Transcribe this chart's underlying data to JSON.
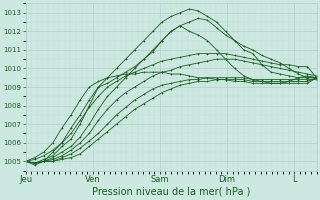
{
  "xlabel": "Pression niveau de la mer( hPa )",
  "ylim": [
    1004.5,
    1013.5
  ],
  "yticks": [
    1005,
    1006,
    1007,
    1008,
    1009,
    1010,
    1011,
    1012,
    1013
  ],
  "bg_color": "#cce8e0",
  "grid_major_color": "#b0d0c8",
  "grid_minor_color": "#c0dcd4",
  "line_color": "#1a5e20",
  "marker": "+",
  "days": [
    "Jeu",
    "Ven",
    "Sam",
    "Dim",
    "L"
  ],
  "day_positions": [
    0,
    1.5,
    3.0,
    4.5,
    6.0
  ],
  "xlim": [
    0,
    6.5
  ],
  "xlabel_fontsize": 7,
  "ytick_fontsize": 5,
  "xtick_fontsize": 6,
  "series": [
    [
      1005.0,
      1004.8,
      1005.0,
      1005.5,
      1006.0,
      1006.8,
      1007.5,
      1008.3,
      1009.0,
      1009.2,
      1009.5,
      1009.8,
      1010.1,
      1010.5,
      1010.9,
      1011.5,
      1012.0,
      1012.3,
      1012.0,
      1011.8,
      1011.5,
      1011.0,
      1010.5,
      1010.0,
      1009.6,
      1009.4,
      1009.3,
      1009.2,
      1009.2,
      1009.3,
      1009.5,
      1009.6,
      1009.5
    ],
    [
      1005.0,
      1004.9,
      1005.1,
      1005.3,
      1005.8,
      1006.2,
      1007.0,
      1008.0,
      1009.0,
      1009.5,
      1010.0,
      1010.5,
      1011.0,
      1011.5,
      1012.0,
      1012.5,
      1012.8,
      1013.0,
      1013.2,
      1013.1,
      1012.8,
      1012.5,
      1012.0,
      1011.5,
      1011.0,
      1010.8,
      1010.2,
      1009.8,
      1009.7,
      1009.6,
      1009.5,
      1009.5,
      1009.5
    ],
    [
      1005.0,
      1004.9,
      1005.0,
      1005.2,
      1005.5,
      1005.8,
      1006.3,
      1007.0,
      1007.8,
      1008.5,
      1009.0,
      1009.5,
      1010.0,
      1010.5,
      1011.0,
      1011.5,
      1012.0,
      1012.3,
      1012.5,
      1012.7,
      1012.6,
      1012.2,
      1011.8,
      1011.5,
      1011.2,
      1011.0,
      1010.7,
      1010.5,
      1010.3,
      1010.0,
      1009.7,
      1009.5,
      1009.5
    ],
    [
      1005.0,
      1004.9,
      1005.0,
      1005.1,
      1005.3,
      1005.6,
      1006.0,
      1006.5,
      1007.2,
      1007.8,
      1008.3,
      1008.7,
      1009.0,
      1009.3,
      1009.6,
      1009.8,
      1009.9,
      1010.1,
      1010.2,
      1010.3,
      1010.4,
      1010.5,
      1010.5,
      1010.5,
      1010.4,
      1010.3,
      1010.2,
      1010.1,
      1010.0,
      1009.9,
      1009.8,
      1009.7,
      1009.6
    ],
    [
      1005.0,
      1004.9,
      1005.0,
      1005.0,
      1005.2,
      1005.4,
      1005.7,
      1006.1,
      1006.5,
      1007.0,
      1007.5,
      1007.9,
      1008.3,
      1008.6,
      1008.9,
      1009.1,
      1009.2,
      1009.3,
      1009.4,
      1009.4,
      1009.5,
      1009.5,
      1009.5,
      1009.5,
      1009.5,
      1009.4,
      1009.4,
      1009.4,
      1009.4,
      1009.4,
      1009.4,
      1009.4,
      1009.4
    ],
    [
      1005.0,
      1004.9,
      1005.0,
      1005.0,
      1005.1,
      1005.2,
      1005.4,
      1005.8,
      1006.2,
      1006.6,
      1007.0,
      1007.4,
      1007.8,
      1008.1,
      1008.4,
      1008.7,
      1008.9,
      1009.1,
      1009.2,
      1009.3,
      1009.3,
      1009.4,
      1009.4,
      1009.4,
      1009.4,
      1009.3,
      1009.3,
      1009.3,
      1009.3,
      1009.3,
      1009.3,
      1009.3,
      1009.5
    ],
    [
      1005.0,
      1005.2,
      1005.5,
      1006.0,
      1006.8,
      1007.5,
      1008.3,
      1009.0,
      1009.3,
      1009.5,
      1009.6,
      1009.7,
      1009.7,
      1009.8,
      1009.8,
      1009.8,
      1009.7,
      1009.7,
      1009.6,
      1009.5,
      1009.5,
      1009.4,
      1009.4,
      1009.3,
      1009.3,
      1009.2,
      1009.2,
      1009.2,
      1009.2,
      1009.2,
      1009.2,
      1009.2,
      1009.5
    ],
    [
      1005.0,
      1005.1,
      1005.3,
      1005.6,
      1006.0,
      1006.5,
      1007.2,
      1007.9,
      1008.5,
      1009.0,
      1009.3,
      1009.6,
      1009.8,
      1010.0,
      1010.2,
      1010.4,
      1010.5,
      1010.6,
      1010.7,
      1010.8,
      1010.8,
      1010.8,
      1010.8,
      1010.7,
      1010.6,
      1010.5,
      1010.4,
      1010.3,
      1010.2,
      1010.2,
      1010.1,
      1010.1,
      1009.5
    ]
  ]
}
